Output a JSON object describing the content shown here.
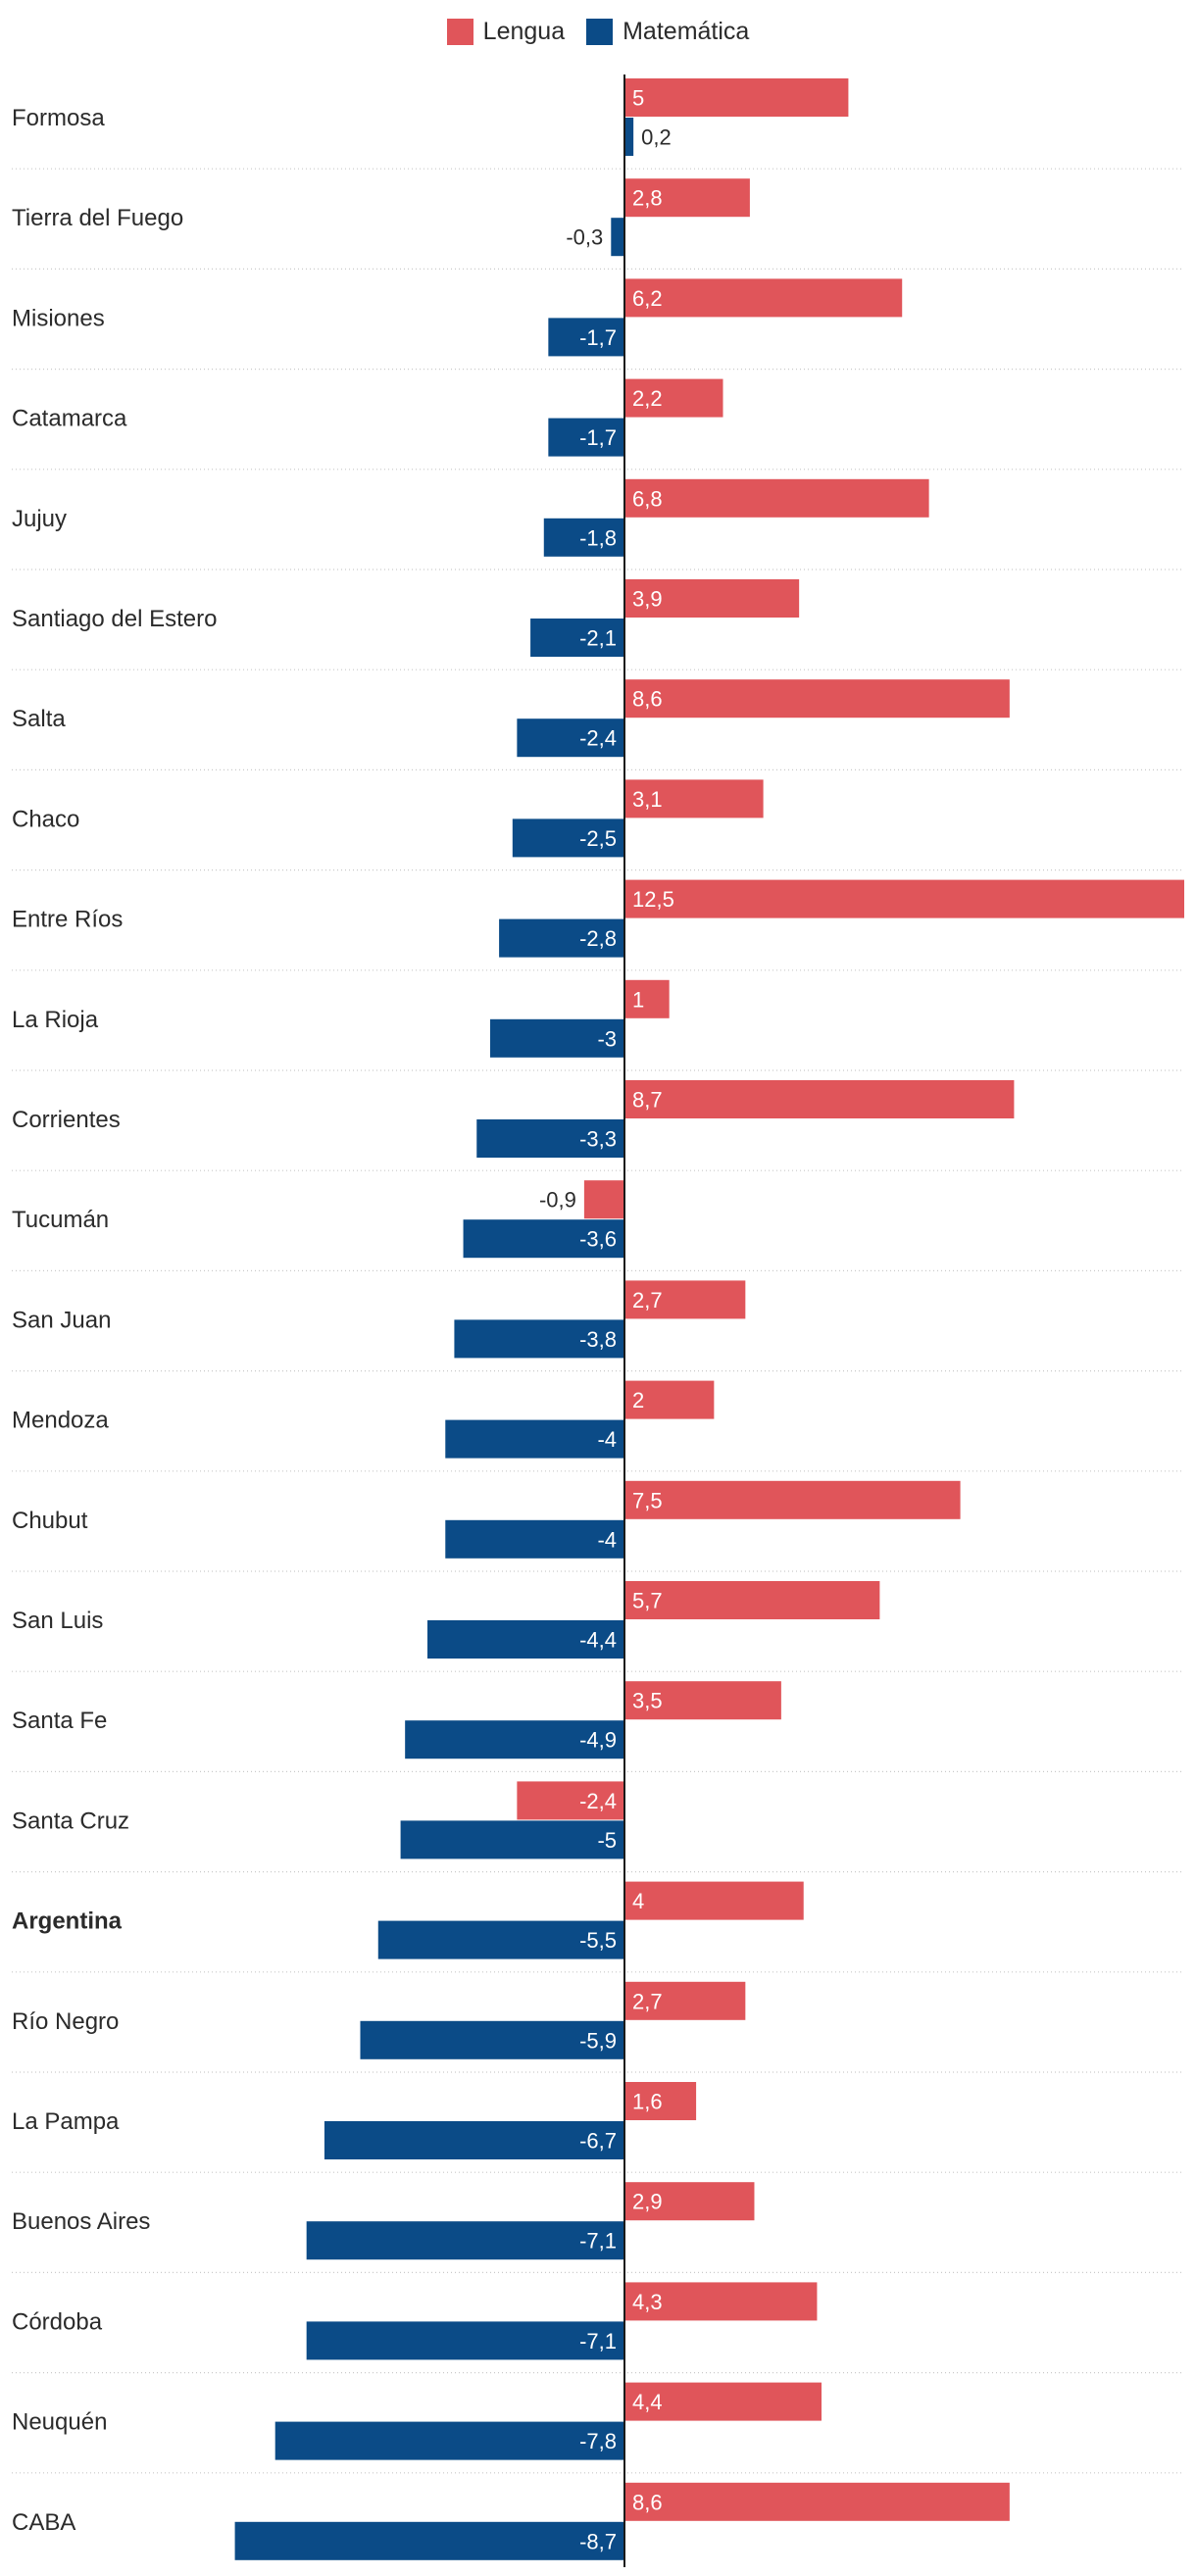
{
  "colors": {
    "lengua": "#e0555a",
    "matematica": "#0b4b87",
    "grid": "#c9c9c9",
    "axis": "#1a1a1a",
    "text": "#2b2b2b"
  },
  "chart_data": {
    "type": "bar",
    "orientation": "horizontal",
    "title": "",
    "xlabel": "",
    "ylabel": "",
    "xlim": [
      -8.7,
      12.5
    ],
    "legend_position": "top-center",
    "grid": true,
    "series": [
      {
        "name": "Lengua",
        "values": [
          5,
          2.8,
          6.2,
          2.2,
          6.8,
          3.9,
          8.6,
          3.1,
          12.5,
          1,
          8.7,
          -0.9,
          2.7,
          2,
          7.5,
          5.7,
          3.5,
          -2.4,
          4,
          2.7,
          1.6,
          2.9,
          4.3,
          4.4,
          8.6
        ],
        "labels": [
          "5",
          "2,8",
          "6,2",
          "2,2",
          "6,8",
          "3,9",
          "8,6",
          "3,1",
          "12,5",
          "1",
          "8,7",
          "-0,9",
          "2,7",
          "2",
          "7,5",
          "5,7",
          "3,5",
          "-2,4",
          "4",
          "2,7",
          "1,6",
          "2,9",
          "4,3",
          "4,4",
          "8,6"
        ]
      },
      {
        "name": "Matemática",
        "values": [
          0.2,
          -0.3,
          -1.7,
          -1.7,
          -1.8,
          -2.1,
          -2.4,
          -2.5,
          -2.8,
          -3,
          -3.3,
          -3.6,
          -3.8,
          -4,
          -4,
          -4.4,
          -4.9,
          -5,
          -5.5,
          -5.9,
          -6.7,
          -7.1,
          -7.1,
          -7.8,
          -8.7
        ],
        "labels": [
          "0,2",
          "-0,3",
          "-1,7",
          "-1,7",
          "-1,8",
          "-2,1",
          "-2,4",
          "-2,5",
          "-2,8",
          "-3",
          "-3,3",
          "-3,6",
          "-3,8",
          "-4",
          "-4",
          "-4,4",
          "-4,9",
          "-5",
          "-5,5",
          "-5,9",
          "-6,7",
          "-7,1",
          "-7,1",
          "-7,8",
          "-8,7"
        ]
      }
    ],
    "categories": [
      "Formosa",
      "Tierra del Fuego",
      "Misiones",
      "Catamarca",
      "Jujuy",
      "Santiago del Estero",
      "Salta",
      "Chaco",
      "Entre Ríos",
      "La Rioja",
      "Corrientes",
      "Tucumán",
      "San Juan",
      "Mendoza",
      "Chubut",
      "San Luis",
      "Santa Fe",
      "Santa Cruz",
      "Argentina",
      "Río Negro",
      "La Pampa",
      "Buenos Aires",
      "Córdoba",
      "Neuquén",
      "CABA"
    ],
    "bold_categories": [
      "Argentina"
    ]
  }
}
